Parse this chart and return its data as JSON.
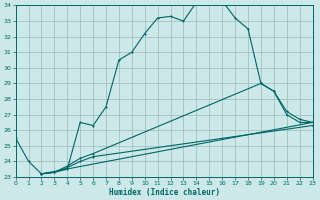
{
  "xlabel": "Humidex (Indice chaleur)",
  "bg_color": "#cce8e8",
  "grid_color": "#99bbbb",
  "line_color": "#006666",
  "xlim": [
    0,
    23
  ],
  "ylim": [
    23,
    34
  ],
  "xticks": [
    0,
    1,
    2,
    3,
    4,
    5,
    6,
    7,
    8,
    9,
    10,
    11,
    12,
    13,
    14,
    15,
    16,
    17,
    18,
    19,
    20,
    21,
    22,
    23
  ],
  "yticks": [
    23,
    24,
    25,
    26,
    27,
    28,
    29,
    30,
    31,
    32,
    33,
    34
  ],
  "main_x": [
    0,
    1,
    2,
    3,
    4,
    5,
    6,
    7,
    8,
    9,
    10,
    11,
    12,
    13,
    14,
    15,
    16,
    17,
    18,
    19,
    20,
    21,
    22,
    23
  ],
  "main_y": [
    25.5,
    24.0,
    23.2,
    23.3,
    23.5,
    26.5,
    26.3,
    27.5,
    30.5,
    31.0,
    32.2,
    33.2,
    33.3,
    33.0,
    34.2,
    34.3,
    34.3,
    33.2,
    32.5,
    29.0,
    28.5,
    27.0,
    26.5,
    26.5
  ],
  "line1_x": [
    2,
    3,
    4,
    5,
    6,
    23
  ],
  "line1_y": [
    23.2,
    23.3,
    23.6,
    24.0,
    24.3,
    26.3
  ],
  "line2_x": [
    2,
    3,
    4,
    5,
    6,
    19,
    20,
    21,
    22,
    23
  ],
  "line2_y": [
    23.2,
    23.3,
    23.7,
    24.2,
    24.5,
    29.0,
    28.5,
    27.2,
    26.7,
    26.5
  ],
  "line3_x": [
    2,
    23
  ],
  "line3_y": [
    23.2,
    26.5
  ]
}
